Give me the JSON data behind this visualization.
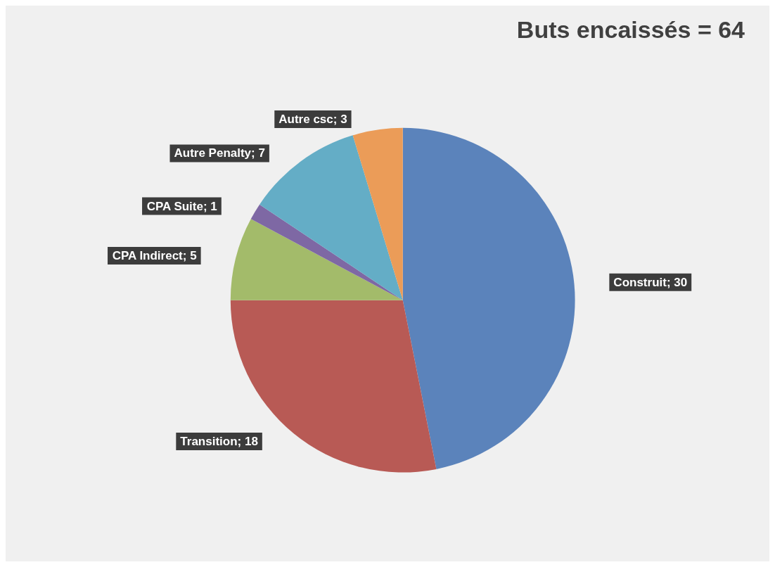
{
  "chart_data": {
    "type": "pie",
    "title": "Buts encaissés = 64",
    "categories": [
      "Construit",
      "Transition",
      "CPA Indirect",
      "CPA Suite",
      "Autre Penalty",
      "Autre csc"
    ],
    "values": [
      30,
      18,
      5,
      1,
      7,
      3
    ],
    "value_labels": [
      "; 30",
      "; 18",
      "; 5",
      "; 1",
      "; 7",
      "; 3"
    ],
    "colors": [
      "#5b83bb",
      "#b85a55",
      "#a3bb6a",
      "#7e68a4",
      "#64adc6",
      "#eb9c58"
    ],
    "legend": false
  }
}
